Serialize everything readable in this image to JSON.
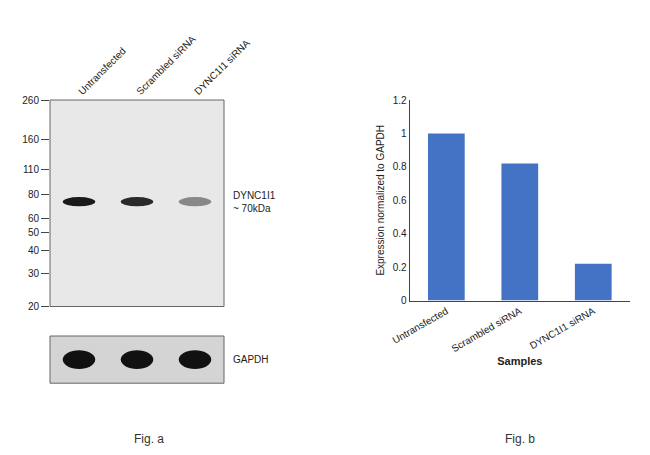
{
  "chart_data": [
    {
      "type": "blot",
      "categories": [
        "Untransfected",
        "Scrambled siRNA",
        "DYNC1I1 siRNA"
      ],
      "log": "y",
      "ylim": [
        20,
        260
      ],
      "yticks": [
        20,
        30,
        40,
        50,
        60,
        80,
        110,
        160,
        260
      ],
      "series": [
        {
          "name": "DYNC1I1\n~ 70kDa",
          "colors": [
            "#1a1a1a",
            "#2a2a2a",
            "#888888"
          ]
        },
        {
          "name": "GAPDH",
          "colors": [
            "#111111",
            "#111111",
            "#111111"
          ]
        }
      ],
      "annotations": [
        "Fig. a"
      ]
    },
    {
      "type": "bar",
      "categories": [
        "Untransfected",
        "Scrambled siRNA",
        "DYNC1I1 siRNA"
      ],
      "values": [
        1.0,
        0.82,
        0.22
      ],
      "color": "#4472C4",
      "xlabel": "Samples",
      "ylabel": "Expression normalized to GAPDH",
      "ylim": [
        0,
        1.2
      ],
      "yticks": [
        0,
        0.2,
        0.4,
        0.6,
        0.8,
        1.0,
        1.2
      ],
      "grid": false,
      "annotations": [
        "Fig. b"
      ]
    }
  ]
}
